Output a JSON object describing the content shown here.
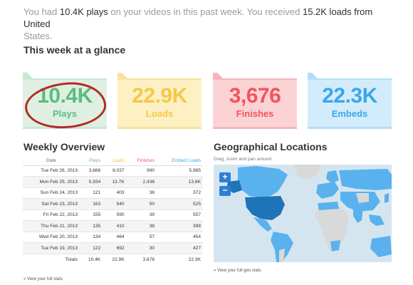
{
  "intro": {
    "p1": "You had ",
    "plays": "10.4K plays",
    "p2": " on your videos in this past week. You received ",
    "loads": "15.2K loads from United",
    "p3": "States."
  },
  "glance": {
    "title": "This week at a glance",
    "cards": [
      {
        "value": "10.4K",
        "label": "Plays"
      },
      {
        "value": "22.9K",
        "label": "Loads"
      },
      {
        "value": "3,676",
        "label": "Finishes"
      },
      {
        "value": "22.3K",
        "label": "Embeds"
      }
    ]
  },
  "overview": {
    "title": "Weekly Overview",
    "headers": {
      "date": "Date",
      "plays": "Plays",
      "loads": "Loads",
      "finishes": "Finishes",
      "embeds": "Embed Loads"
    },
    "rows": [
      {
        "date": "Tue Feb 26, 2013",
        "plays": "3,666",
        "loads": "6,037",
        "finishes": "990",
        "embeds": "5,985"
      },
      {
        "date": "Mon Feb 25, 2013",
        "plays": "5,934",
        "loads": "13.7K",
        "finishes": "2,436",
        "embeds": "13.6K"
      },
      {
        "date": "Sun Feb 24, 2013",
        "plays": "121",
        "loads": "403",
        "finishes": "36",
        "embeds": "372"
      },
      {
        "date": "Sat Feb 23, 2013",
        "plays": "163",
        "loads": "540",
        "finishes": "50",
        "embeds": "525"
      },
      {
        "date": "Fri Feb 22, 2013",
        "plays": "155",
        "loads": "590",
        "finishes": "39",
        "embeds": "557"
      },
      {
        "date": "Thu Feb 21, 2013",
        "plays": "135",
        "loads": "410",
        "finishes": "38",
        "embeds": "398"
      },
      {
        "date": "Wed Feb 20, 2013",
        "plays": "134",
        "loads": "464",
        "finishes": "57",
        "embeds": "454"
      },
      {
        "date": "Tue Feb 19, 2013",
        "plays": "122",
        "loads": "692",
        "finishes": "30",
        "embeds": "427"
      }
    ],
    "totals": {
      "label": "Totals",
      "plays": "10.4K",
      "loads": "22.9K",
      "finishes": "3,676",
      "embeds": "22.3K"
    },
    "link": "» View your full stats"
  },
  "geo": {
    "title": "Geographical Locations",
    "subtitle": "Drag, zoom and pan around.",
    "zoom_in": "+",
    "zoom_out": "−",
    "link": "» View your full geo stats"
  },
  "colors": {
    "plays": "#5cbd7c",
    "loads": "#f5c84b",
    "finishes": "#f2545b",
    "embeds": "#3aa7e8",
    "map_dark": "#1f73b7",
    "map_light": "#59b2ee",
    "map_none": "#d9d9d9"
  }
}
